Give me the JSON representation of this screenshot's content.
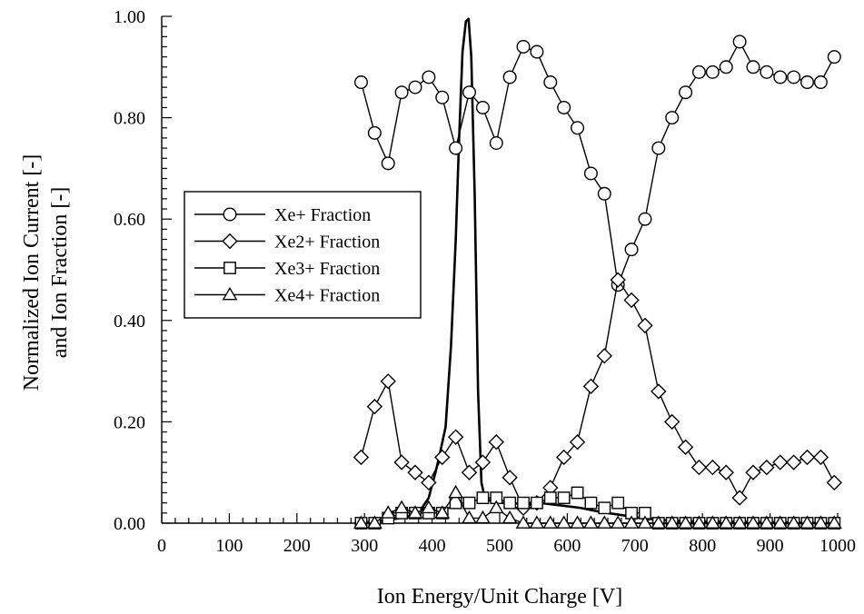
{
  "chart_data": {
    "type": "line",
    "xlabel": "Ion Energy/Unit Charge [V]",
    "ylabel_lines": [
      "Normalized Ion Current [-]",
      "and Ion Fraction [-]"
    ],
    "xlim": [
      0,
      1000
    ],
    "ylim": [
      0,
      1.0
    ],
    "x_ticks": [
      0,
      100,
      200,
      300,
      400,
      500,
      600,
      700,
      800,
      900,
      1000
    ],
    "x_tick_labels": [
      "0",
      "100",
      "200",
      "300",
      "400",
      "500",
      "600",
      "700",
      "800",
      "900",
      "1000"
    ],
    "y_ticks": [
      0,
      0.2,
      0.4,
      0.6,
      0.8,
      1.0
    ],
    "y_tick_labels": [
      "0.00",
      "0.20",
      "0.40",
      "0.60",
      "0.80",
      "1.00"
    ],
    "grid": false,
    "legend_position": "center-left",
    "fraction_x": [
      295,
      315,
      335,
      355,
      375,
      395,
      415,
      435,
      455,
      475,
      495,
      515,
      535,
      555,
      575,
      595,
      615,
      635,
      655,
      675,
      695,
      715,
      735,
      755,
      775,
      795,
      815,
      835,
      855,
      875,
      895,
      915,
      935,
      955,
      975,
      995
    ],
    "series": [
      {
        "name": "Xe+ Fraction",
        "marker": "circle",
        "values": [
          0.87,
          0.77,
          0.71,
          0.85,
          0.86,
          0.88,
          0.84,
          0.74,
          0.85,
          0.82,
          0.75,
          0.88,
          0.94,
          0.93,
          0.87,
          0.82,
          0.78,
          0.69,
          0.65,
          0.47,
          0.54,
          0.6,
          0.74,
          0.8,
          0.85,
          0.89,
          0.89,
          0.9,
          0.95,
          0.9,
          0.89,
          0.88,
          0.88,
          0.87,
          0.87,
          0.92
        ]
      },
      {
        "name": "Xe2+ Fraction",
        "marker": "diamond",
        "values": [
          0.13,
          0.23,
          0.28,
          0.12,
          0.1,
          0.08,
          0.13,
          0.17,
          0.1,
          0.12,
          0.16,
          0.09,
          0.03,
          0.04,
          0.07,
          0.13,
          0.16,
          0.27,
          0.33,
          0.48,
          0.44,
          0.39,
          0.26,
          0.2,
          0.15,
          0.11,
          0.11,
          0.1,
          0.05,
          0.1,
          0.11,
          0.12,
          0.12,
          0.13,
          0.13,
          0.08
        ]
      },
      {
        "name": "Xe3+ Fraction",
        "marker": "square",
        "values": [
          0.0,
          0.0,
          0.01,
          0.02,
          0.02,
          0.02,
          0.02,
          0.04,
          0.04,
          0.05,
          0.05,
          0.04,
          0.04,
          0.04,
          0.05,
          0.05,
          0.06,
          0.04,
          0.03,
          0.04,
          0.02,
          0.02,
          0.0,
          0.0,
          0.0,
          0.0,
          0.0,
          0.0,
          0.0,
          0.0,
          0.0,
          0.0,
          0.0,
          0.0,
          0.0,
          0.0
        ]
      },
      {
        "name": "Xe4+ Fraction",
        "marker": "triangle",
        "values": [
          0.0,
          0.0,
          0.02,
          0.03,
          0.02,
          0.03,
          0.02,
          0.06,
          0.01,
          0.01,
          0.03,
          0.01,
          0.0,
          0.0,
          0.0,
          0.0,
          0.0,
          0.0,
          0.0,
          0.0,
          0.0,
          0.0,
          0.0,
          0.0,
          0.0,
          0.0,
          0.0,
          0.0,
          0.0,
          0.0,
          0.0,
          0.0,
          0.0,
          0.0,
          0.0,
          0.0
        ]
      },
      {
        "marker": "none",
        "curve": "normalized-ion-current",
        "x": [
          285,
          330,
          360,
          380,
          395,
          405,
          412,
          420,
          428,
          435,
          440,
          445,
          450,
          454,
          458,
          463,
          468,
          473,
          478,
          485,
          495,
          510,
          540,
          560,
          590,
          620,
          650,
          680,
          710,
          750,
          800,
          900,
          1000
        ],
        "values": [
          0.0,
          0.005,
          0.012,
          0.02,
          0.05,
          0.1,
          0.14,
          0.19,
          0.35,
          0.56,
          0.76,
          0.93,
          0.99,
          0.995,
          0.92,
          0.65,
          0.26,
          0.08,
          0.05,
          0.045,
          0.04,
          0.04,
          0.038,
          0.04,
          0.035,
          0.03,
          0.022,
          0.016,
          0.01,
          0.005,
          0.003,
          0.002,
          0.0
        ]
      }
    ]
  }
}
